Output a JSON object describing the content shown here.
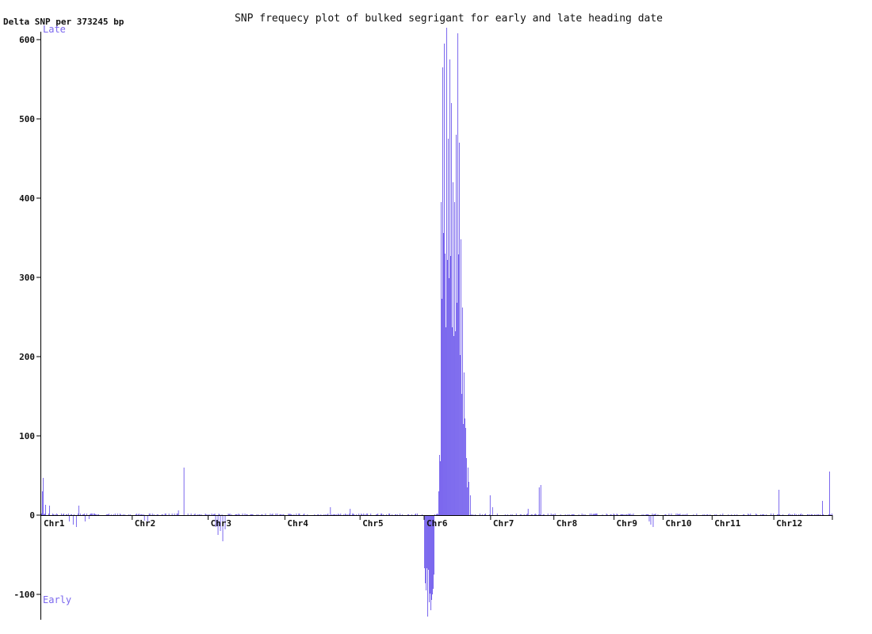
{
  "chart_data": {
    "type": "bar",
    "title": "SNP frequecy plot of bulked segrigant for early and late heading date",
    "ylabel": "Delta SNP per 373245 bp",
    "label_top": "Late",
    "label_bottom": "Early",
    "ylim": [
      -130,
      620
    ],
    "yticks": [
      -100,
      0,
      100,
      200,
      300,
      400,
      500,
      600
    ],
    "bar_color": "#7b68ee",
    "grid": false,
    "chromosomes": [
      {
        "name": "Chr1",
        "bins": 115
      },
      {
        "name": "Chr2",
        "bins": 96
      },
      {
        "name": "Chr3",
        "bins": 97
      },
      {
        "name": "Chr4",
        "bins": 95
      },
      {
        "name": "Chr5",
        "bins": 81
      },
      {
        "name": "Chr6",
        "bins": 84
      },
      {
        "name": "Chr7",
        "bins": 80
      },
      {
        "name": "Chr8",
        "bins": 76
      },
      {
        "name": "Chr9",
        "bins": 62
      },
      {
        "name": "Chr10",
        "bins": 62
      },
      {
        "name": "Chr11",
        "bins": 78
      },
      {
        "name": "Chr12",
        "bins": 74
      }
    ],
    "peaks": [
      {
        "bin": 2,
        "value": 47
      },
      {
        "bin": 1,
        "value": 30
      },
      {
        "bin": 5,
        "value": 13
      },
      {
        "bin": 10,
        "value": 12
      },
      {
        "bin": 35,
        "value": -8
      },
      {
        "bin": 40,
        "value": -12
      },
      {
        "bin": 44,
        "value": -15
      },
      {
        "bin": 47,
        "value": 12
      },
      {
        "bin": 55,
        "value": -8
      },
      {
        "bin": 60,
        "value": -5
      },
      {
        "bin": 130,
        "value": -7
      },
      {
        "bin": 134,
        "value": -8
      },
      {
        "bin": 173,
        "value": 6
      },
      {
        "bin": 180,
        "value": 60
      },
      {
        "bin": 220,
        "value": -15
      },
      {
        "bin": 223,
        "value": -25
      },
      {
        "bin": 226,
        "value": -20
      },
      {
        "bin": 229,
        "value": -33
      },
      {
        "bin": 232,
        "value": -18
      },
      {
        "bin": 365,
        "value": 10
      },
      {
        "bin": 390,
        "value": 8
      },
      {
        "bin": 484,
        "value": -67
      },
      {
        "bin": 486,
        "value": -95
      },
      {
        "bin": 488,
        "value": -128
      },
      {
        "bin": 490,
        "value": -110
      },
      {
        "bin": 492,
        "value": -120
      },
      {
        "bin": 494,
        "value": -100
      },
      {
        "bin": 496,
        "value": -75
      },
      {
        "bin": 502,
        "value": 30
      },
      {
        "bin": 505,
        "value": 395
      },
      {
        "bin": 507,
        "value": 565
      },
      {
        "bin": 509,
        "value": 595
      },
      {
        "bin": 510,
        "value": 330
      },
      {
        "bin": 512,
        "value": 615
      },
      {
        "bin": 514,
        "value": 475
      },
      {
        "bin": 516,
        "value": 575
      },
      {
        "bin": 518,
        "value": 520
      },
      {
        "bin": 520,
        "value": 420
      },
      {
        "bin": 522,
        "value": 395
      },
      {
        "bin": 524,
        "value": 480
      },
      {
        "bin": 526,
        "value": 608
      },
      {
        "bin": 528,
        "value": 470
      },
      {
        "bin": 530,
        "value": 348
      },
      {
        "bin": 532,
        "value": 262
      },
      {
        "bin": 534,
        "value": 180
      },
      {
        "bin": 536,
        "value": 110
      },
      {
        "bin": 538,
        "value": 35
      },
      {
        "bin": 540,
        "value": 42
      },
      {
        "bin": 542,
        "value": 25
      },
      {
        "bin": 567,
        "value": 25
      },
      {
        "bin": 570,
        "value": 10
      },
      {
        "bin": 615,
        "value": 8
      },
      {
        "bin": 629,
        "value": 35
      },
      {
        "bin": 631,
        "value": 38
      },
      {
        "bin": 768,
        "value": -8
      },
      {
        "bin": 770,
        "value": -12
      },
      {
        "bin": 773,
        "value": -15
      },
      {
        "bin": 932,
        "value": 32
      },
      {
        "bin": 987,
        "value": 18
      },
      {
        "bin": 996,
        "value": 55
      }
    ]
  }
}
